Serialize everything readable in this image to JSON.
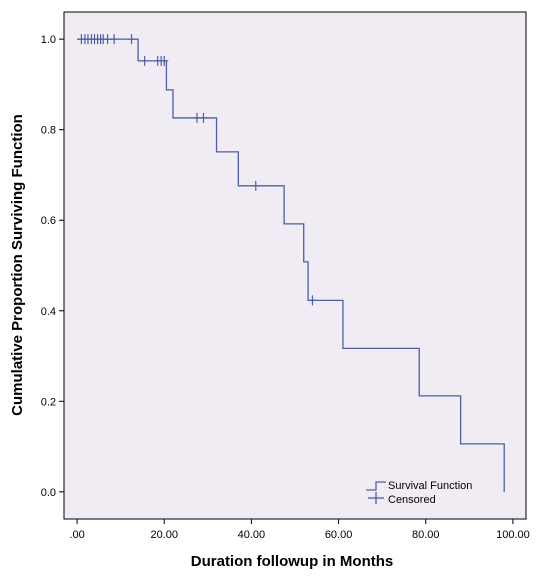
{
  "chart_data": {
    "type": "line",
    "title": "",
    "xlabel": "Duration followup in Months",
    "ylabel": "Cumulative Proportion Surviving Function",
    "xlim": [
      -3,
      103
    ],
    "ylim": [
      -0.06,
      1.06
    ],
    "x_ticks": [
      0,
      20,
      40,
      60,
      80,
      100
    ],
    "x_tick_labels": [
      ".00",
      "20.00",
      "40.00",
      "60.00",
      "80.00",
      "100.00"
    ],
    "y_ticks": [
      0,
      0.2,
      0.4,
      0.6,
      0.8,
      1.0
    ],
    "y_tick_labels": [
      "0.0",
      "0.2",
      "0.4",
      "0.6",
      "0.8",
      "1.0"
    ],
    "grid": false,
    "legend_position": "bottom-right",
    "series": [
      {
        "name": "Survival Function",
        "kind": "step",
        "color": "#4a5fa8",
        "points": [
          [
            0,
            1.0
          ],
          [
            14,
            0.952
          ],
          [
            20.5,
            0.888
          ],
          [
            22,
            0.826
          ],
          [
            32,
            0.751
          ],
          [
            37,
            0.676
          ],
          [
            47.5,
            0.592
          ],
          [
            52,
            0.508
          ],
          [
            53,
            0.423
          ],
          [
            61,
            0.317
          ],
          [
            78.5,
            0.212
          ],
          [
            88,
            0.106
          ],
          [
            98,
            0.0
          ]
        ],
        "end_x": 98
      },
      {
        "name": "Censored",
        "kind": "markers",
        "color": "#4a5fa8",
        "points": [
          [
            1,
            1.0
          ],
          [
            1.8,
            1.0
          ],
          [
            2.5,
            1.0
          ],
          [
            3.3,
            1.0
          ],
          [
            4,
            1.0
          ],
          [
            4.7,
            1.0
          ],
          [
            5.4,
            1.0
          ],
          [
            6,
            1.0
          ],
          [
            7,
            1.0
          ],
          [
            8.5,
            1.0
          ],
          [
            12.5,
            1.0
          ],
          [
            15.5,
            0.952
          ],
          [
            18.5,
            0.952
          ],
          [
            19.3,
            0.952
          ],
          [
            20,
            0.952
          ],
          [
            27.5,
            0.826
          ],
          [
            29,
            0.826
          ],
          [
            41,
            0.676
          ],
          [
            54,
            0.423
          ]
        ]
      }
    ]
  }
}
